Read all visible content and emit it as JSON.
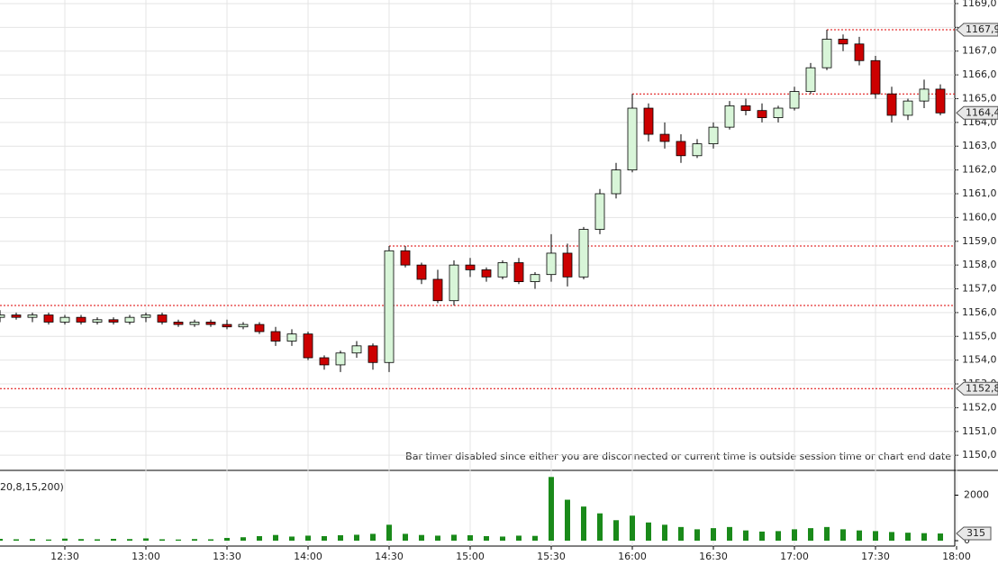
{
  "chart_data": {
    "type": "candlestick",
    "x": [
      "12:06",
      "12:12",
      "12:18",
      "12:24",
      "12:30",
      "12:36",
      "12:42",
      "12:48",
      "12:54",
      "13:00",
      "13:06",
      "13:12",
      "13:18",
      "13:24",
      "13:30",
      "13:36",
      "13:42",
      "13:48",
      "13:54",
      "14:00",
      "14:06",
      "14:12",
      "14:18",
      "14:24",
      "14:30",
      "14:36",
      "14:42",
      "14:48",
      "14:54",
      "15:00",
      "15:06",
      "15:12",
      "15:18",
      "15:24",
      "15:30",
      "15:36",
      "15:42",
      "15:48",
      "15:54",
      "16:00",
      "16:06",
      "16:12",
      "16:18",
      "16:24",
      "16:30",
      "16:36",
      "16:42",
      "16:48",
      "16:54",
      "17:00",
      "17:06",
      "17:12",
      "17:18",
      "17:24",
      "17:30",
      "17:36",
      "17:42",
      "17:48",
      "17:54"
    ],
    "open": [
      1155.8,
      1155.9,
      1155.8,
      1155.9,
      1155.6,
      1155.8,
      1155.6,
      1155.7,
      1155.6,
      1155.8,
      1155.9,
      1155.6,
      1155.5,
      1155.6,
      1155.5,
      1155.4,
      1155.5,
      1155.2,
      1154.8,
      1155.1,
      1154.1,
      1153.8,
      1154.3,
      1154.6,
      1153.9,
      1158.6,
      1158.0,
      1157.4,
      1156.5,
      1158.0,
      1157.8,
      1157.5,
      1158.1,
      1157.3,
      1157.6,
      1158.5,
      1157.5,
      1159.5,
      1161.0,
      1162.0,
      1164.6,
      1163.5,
      1163.2,
      1162.6,
      1163.1,
      1163.8,
      1164.7,
      1164.5,
      1164.2,
      1164.6,
      1165.3,
      1166.3,
      1167.5,
      1167.3,
      1166.6,
      1165.2,
      1164.3,
      1164.9,
      1165.4
    ],
    "high": [
      1156.1,
      1156.0,
      1156.0,
      1156.0,
      1155.9,
      1155.9,
      1155.8,
      1155.8,
      1155.9,
      1156.0,
      1156.0,
      1155.7,
      1155.7,
      1155.7,
      1155.7,
      1155.6,
      1155.6,
      1155.4,
      1155.3,
      1155.2,
      1154.2,
      1154.4,
      1154.8,
      1154.7,
      1158.8,
      1158.8,
      1158.1,
      1157.8,
      1158.2,
      1158.3,
      1157.9,
      1158.2,
      1158.3,
      1157.7,
      1159.3,
      1158.9,
      1159.6,
      1161.2,
      1162.3,
      1165.2,
      1164.8,
      1164.0,
      1163.5,
      1163.3,
      1164.0,
      1164.9,
      1165.0,
      1164.8,
      1164.7,
      1165.5,
      1166.5,
      1167.9,
      1167.7,
      1167.6,
      1166.8,
      1165.5,
      1165.0,
      1165.8,
      1165.6
    ],
    "low": [
      1155.6,
      1155.7,
      1155.6,
      1155.5,
      1155.5,
      1155.5,
      1155.5,
      1155.5,
      1155.5,
      1155.6,
      1155.5,
      1155.4,
      1155.4,
      1155.4,
      1155.3,
      1155.3,
      1155.1,
      1154.6,
      1154.6,
      1154.0,
      1153.6,
      1153.5,
      1154.1,
      1153.6,
      1153.5,
      1157.9,
      1157.2,
      1156.4,
      1156.3,
      1157.5,
      1157.3,
      1157.4,
      1157.2,
      1157.0,
      1157.3,
      1157.1,
      1157.4,
      1159.3,
      1160.8,
      1161.9,
      1163.2,
      1162.9,
      1162.3,
      1162.5,
      1162.9,
      1163.7,
      1164.3,
      1164.0,
      1164.0,
      1164.5,
      1165.2,
      1166.2,
      1167.0,
      1166.4,
      1165.0,
      1164.0,
      1164.1,
      1164.6,
      1164.3
    ],
    "close": [
      1155.9,
      1155.8,
      1155.9,
      1155.6,
      1155.8,
      1155.6,
      1155.7,
      1155.6,
      1155.8,
      1155.9,
      1155.6,
      1155.5,
      1155.6,
      1155.5,
      1155.4,
      1155.5,
      1155.2,
      1154.8,
      1155.1,
      1154.1,
      1153.8,
      1154.3,
      1154.6,
      1153.9,
      1158.6,
      1158.0,
      1157.4,
      1156.5,
      1158.0,
      1157.8,
      1157.5,
      1158.1,
      1157.3,
      1157.6,
      1158.5,
      1157.5,
      1159.5,
      1161.0,
      1162.0,
      1164.6,
      1163.5,
      1163.2,
      1162.6,
      1163.1,
      1163.8,
      1164.7,
      1164.5,
      1164.2,
      1164.6,
      1165.3,
      1166.3,
      1167.5,
      1167.3,
      1166.6,
      1165.2,
      1164.3,
      1164.9,
      1165.4,
      1164.4
    ],
    "up_color": "#d8f5d8",
    "down_color": "#cc0000",
    "ylim": [
      1149.4,
      1169.15
    ],
    "yticks": [
      {
        "value": 1150,
        "label": "1150,0"
      },
      {
        "value": 1151,
        "label": "1151,0"
      },
      {
        "value": 1152,
        "label": "1152,0"
      },
      {
        "value": 1153,
        "label": "1153,0"
      },
      {
        "value": 1154,
        "label": "1154,0"
      },
      {
        "value": 1155,
        "label": "1155,0"
      },
      {
        "value": 1156,
        "label": "1156,0"
      },
      {
        "value": 1157,
        "label": "1157,0"
      },
      {
        "value": 1158,
        "label": "1158,0"
      },
      {
        "value": 1159,
        "label": "1159,0"
      },
      {
        "value": 1160,
        "label": "1160,0"
      },
      {
        "value": 1161,
        "label": "1161,0"
      },
      {
        "value": 1162,
        "label": "1162,0"
      },
      {
        "value": 1163,
        "label": "1163,0"
      },
      {
        "value": 1164,
        "label": "1164,0"
      },
      {
        "value": 1165,
        "label": "1165,0"
      },
      {
        "value": 1166,
        "label": "1166,0"
      },
      {
        "value": 1167,
        "label": "1167,0"
      },
      {
        "value": 1168,
        "label": "1168,0"
      },
      {
        "value": 1169,
        "label": "1169,0"
      }
    ],
    "xticks": [
      "12:30",
      "13:00",
      "13:30",
      "14:00",
      "14:30",
      "15:00",
      "15:30",
      "16:00",
      "16:30",
      "17:00",
      "17:30",
      "18:00"
    ],
    "grid": true,
    "levels": [
      {
        "value": 1156.3,
        "start": "12:06"
      },
      {
        "value": 1152.8,
        "start": "12:06"
      },
      {
        "value": 1158.8,
        "start": "14:30"
      },
      {
        "value": 1165.2,
        "start": "16:00"
      },
      {
        "value": 1167.9,
        "start": "17:12"
      }
    ],
    "price_markers": [
      {
        "value": 1167.9,
        "label": "1167,9"
      },
      {
        "value": 1164.4,
        "label": "1164,4"
      },
      {
        "value": 1152.8,
        "label": "1152,8"
      }
    ],
    "note": "Bar timer disabled since either you are disconnected or current time is outside session time or chart end date",
    "indicator_label": "20,8,15,200)",
    "volume": {
      "values": [
        80,
        60,
        70,
        50,
        90,
        70,
        60,
        80,
        70,
        100,
        60,
        50,
        70,
        60,
        120,
        150,
        200,
        250,
        180,
        220,
        200,
        240,
        260,
        300,
        700,
        300,
        250,
        220,
        260,
        240,
        200,
        180,
        220,
        210,
        2800,
        1800,
        1500,
        1200,
        900,
        1100,
        800,
        700,
        600,
        500,
        550,
        600,
        450,
        400,
        420,
        500,
        550,
        600,
        500,
        450,
        420,
        380,
        350,
        330,
        315
      ],
      "color": "#1a8a1a",
      "ylim": [
        0,
        3050
      ],
      "yticks": [
        0,
        2000
      ],
      "marker": {
        "value": 315,
        "label": "315"
      }
    }
  }
}
